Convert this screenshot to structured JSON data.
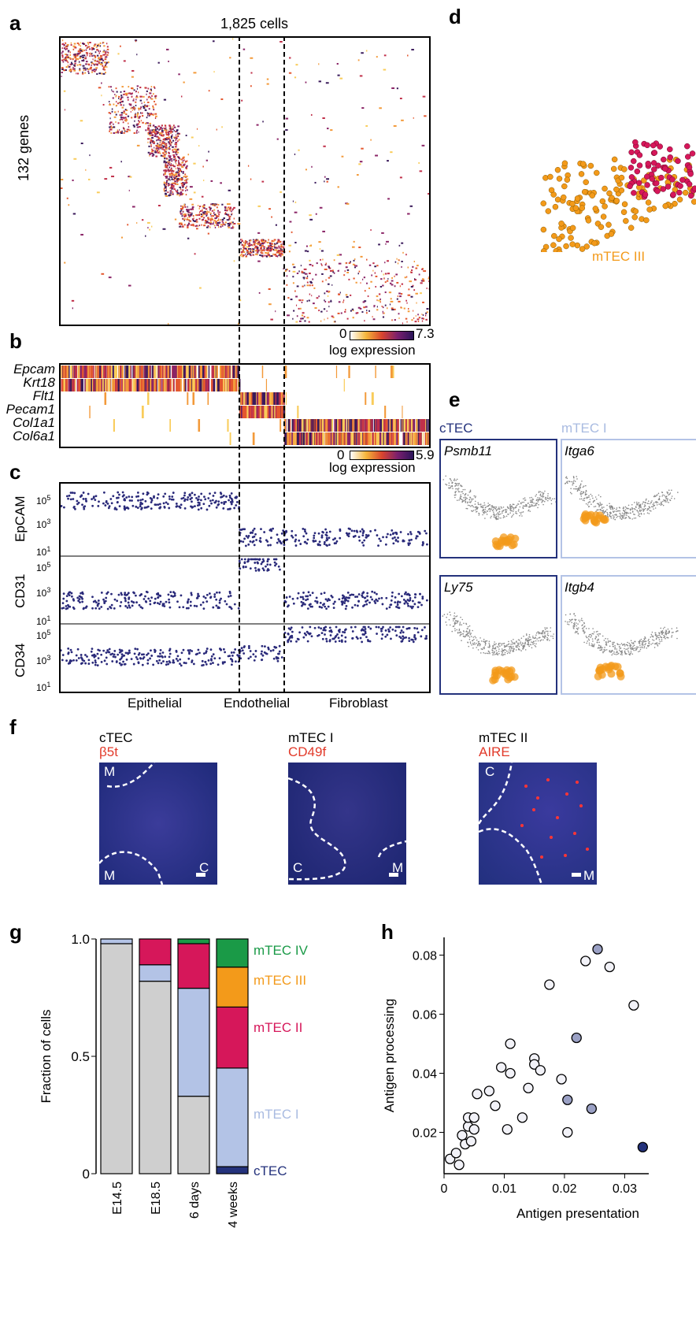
{
  "panel_labels": {
    "a": "a",
    "b": "b",
    "c": "c",
    "d": "d",
    "e": "e",
    "f": "f",
    "g": "g",
    "h": "h"
  },
  "a": {
    "cells_label": "1,825 cells",
    "genes_label": "132 genes",
    "scale_min": "0",
    "scale_max": "7.3",
    "scale_label": "log expression"
  },
  "b": {
    "genes": [
      "Epcam",
      "Krt18",
      "Flt1",
      "Pecam1",
      "Col1a1",
      "Col6a1"
    ],
    "scale_min": "0",
    "scale_max": "5.9",
    "scale_label": "log expression"
  },
  "c": {
    "rows": [
      "EpCAM",
      "CD31",
      "CD34"
    ],
    "ticks": [
      "10",
      "10",
      "10"
    ],
    "exps": [
      "5",
      "3",
      "1"
    ],
    "groups": [
      "Epithelial",
      "Endothelial",
      "Fibroblast"
    ]
  },
  "d": {
    "label": "mTEC III"
  },
  "e": {
    "col1": "cTEC",
    "col2": "mTEC I",
    "genes": [
      "Psmb11",
      "Itga6",
      "Ly75",
      "Itgb4"
    ]
  },
  "f": {
    "panels": [
      {
        "title": "cTEC",
        "marker": "β5t",
        "tl": "M",
        "bl": "M",
        "br": "C"
      },
      {
        "title": "mTEC I",
        "marker": "CD49f",
        "bl": "C",
        "br": "M"
      },
      {
        "title": "mTEC II",
        "marker": "AIRE",
        "tl": "C",
        "br": "M"
      }
    ]
  },
  "chart_data": [
    {
      "type": "bar",
      "stacked": true,
      "categories": [
        "E14.5",
        "E18.5",
        "6 days",
        "4 weeks"
      ],
      "ylabel": "Fraction of cells",
      "ylim": [
        0,
        1
      ],
      "yticks": [
        "0",
        "0.5",
        "1.0"
      ],
      "series": [
        {
          "name": "cTEC",
          "values": [
            0.98,
            0.82,
            0.33,
            0.03
          ],
          "color": "#24327c"
        },
        {
          "name": "mTEC I",
          "values": [
            0.02,
            0.07,
            0.46,
            0.42
          ],
          "color": "#b3c3e6"
        },
        {
          "name": "mTEC II",
          "values": [
            0.0,
            0.11,
            0.19,
            0.26
          ],
          "color": "#d6175a"
        },
        {
          "name": "mTEC III",
          "values": [
            0.0,
            0.0,
            0.0,
            0.17
          ],
          "color": "#f39a1a"
        },
        {
          "name": "mTEC IV",
          "values": [
            0.0,
            0.0,
            0.02,
            0.12
          ],
          "color": "#1a9a47"
        }
      ],
      "base_color": "#cfcfcf"
    },
    {
      "type": "scatter",
      "xlabel": "Antigen presentation",
      "ylabel": "Antigen processing",
      "xlim": [
        0,
        0.034
      ],
      "ylim": [
        0.006,
        0.086
      ],
      "xticks": [
        "0",
        "0.01",
        "0.02",
        "0.03"
      ],
      "yticks": [
        "0.02",
        "0.04",
        "0.06",
        "0.08"
      ],
      "points": [
        {
          "x": 0.001,
          "y": 0.011,
          "c": "w"
        },
        {
          "x": 0.002,
          "y": 0.013,
          "c": "w"
        },
        {
          "x": 0.0025,
          "y": 0.009,
          "c": "w"
        },
        {
          "x": 0.003,
          "y": 0.019,
          "c": "w"
        },
        {
          "x": 0.0035,
          "y": 0.016,
          "c": "w"
        },
        {
          "x": 0.004,
          "y": 0.022,
          "c": "w"
        },
        {
          "x": 0.004,
          "y": 0.025,
          "c": "w"
        },
        {
          "x": 0.0045,
          "y": 0.017,
          "c": "w"
        },
        {
          "x": 0.005,
          "y": 0.021,
          "c": "w"
        },
        {
          "x": 0.005,
          "y": 0.025,
          "c": "w"
        },
        {
          "x": 0.0055,
          "y": 0.033,
          "c": "w"
        },
        {
          "x": 0.0075,
          "y": 0.034,
          "c": "w"
        },
        {
          "x": 0.0085,
          "y": 0.029,
          "c": "w"
        },
        {
          "x": 0.0095,
          "y": 0.042,
          "c": "w"
        },
        {
          "x": 0.0105,
          "y": 0.021,
          "c": "w"
        },
        {
          "x": 0.011,
          "y": 0.04,
          "c": "w"
        },
        {
          "x": 0.011,
          "y": 0.05,
          "c": "w"
        },
        {
          "x": 0.013,
          "y": 0.025,
          "c": "w"
        },
        {
          "x": 0.014,
          "y": 0.035,
          "c": "w"
        },
        {
          "x": 0.015,
          "y": 0.045,
          "c": "w"
        },
        {
          "x": 0.015,
          "y": 0.043,
          "c": "w"
        },
        {
          "x": 0.016,
          "y": 0.041,
          "c": "w"
        },
        {
          "x": 0.0175,
          "y": 0.07,
          "c": "w"
        },
        {
          "x": 0.0195,
          "y": 0.038,
          "c": "w"
        },
        {
          "x": 0.0205,
          "y": 0.02,
          "c": "w"
        },
        {
          "x": 0.0235,
          "y": 0.078,
          "c": "w"
        },
        {
          "x": 0.0275,
          "y": 0.076,
          "c": "w"
        },
        {
          "x": 0.0315,
          "y": 0.063,
          "c": "w"
        },
        {
          "x": 0.0205,
          "y": 0.031,
          "c": "g"
        },
        {
          "x": 0.022,
          "y": 0.052,
          "c": "g"
        },
        {
          "x": 0.0245,
          "y": 0.028,
          "c": "g"
        },
        {
          "x": 0.0255,
          "y": 0.082,
          "c": "g"
        },
        {
          "x": 0.033,
          "y": 0.015,
          "c": "d"
        }
      ]
    }
  ]
}
